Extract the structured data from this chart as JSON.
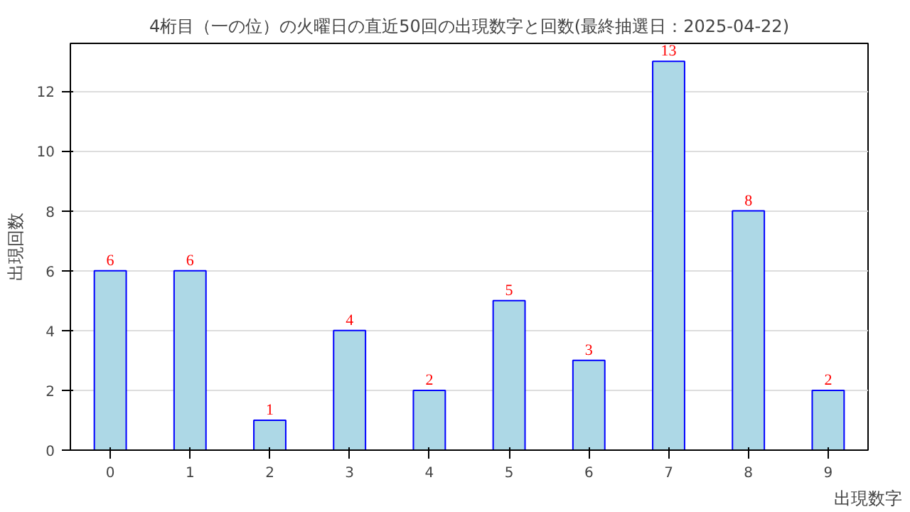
{
  "chart_data": {
    "type": "bar",
    "title": "4桁目（一の位）の火曜日の直近50回の出現数字と回数(最終抽選日：2025-04-22)",
    "xlabel": "出現数字",
    "ylabel": "出現回数",
    "categories": [
      "0",
      "1",
      "2",
      "3",
      "4",
      "5",
      "6",
      "7",
      "8",
      "9"
    ],
    "series": [
      {
        "color": "#add8e6",
        "values": [
          6,
          6,
          1,
          4,
          2,
          5,
          3,
          13,
          8,
          2
        ]
      }
    ],
    "ylim": [
      0,
      13.6
    ],
    "yticks": [
      0,
      2,
      4,
      6,
      8,
      10,
      12
    ],
    "grid": "y",
    "data_labels": true
  }
}
